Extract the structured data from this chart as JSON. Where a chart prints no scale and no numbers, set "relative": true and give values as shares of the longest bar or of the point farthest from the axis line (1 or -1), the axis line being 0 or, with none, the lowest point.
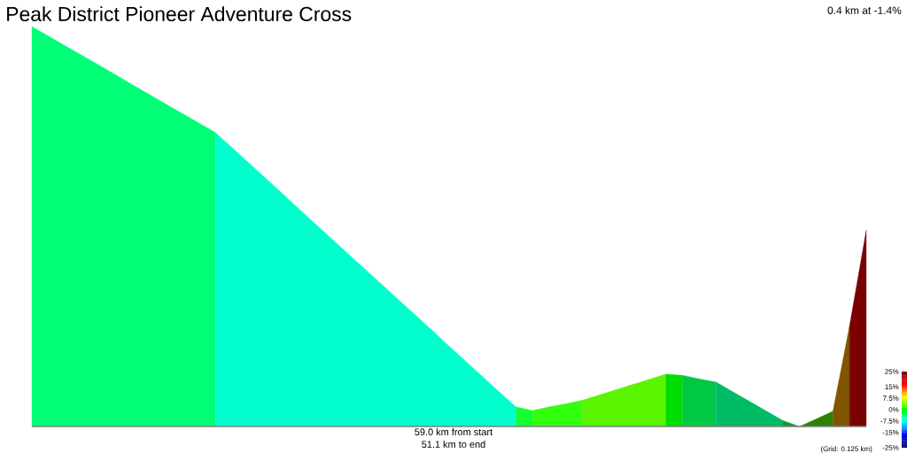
{
  "chart_data": {
    "type": "area",
    "title": "Peak District Pioneer Adventure Cross",
    "relative": true,
    "categories": [
      null,
      null,
      null,
      null,
      null,
      null,
      null,
      null,
      null,
      null,
      null,
      null,
      null,
      null,
      null,
      null,
      null,
      null,
      null,
      null,
      null,
      null,
      null,
      null,
      null,
      null,
      null,
      null,
      null,
      null,
      null,
      null,
      null,
      null,
      null,
      null,
      null,
      null,
      null,
      null,
      null,
      null,
      null,
      null,
      null,
      null,
      null,
      null,
      null,
      null,
      null
    ],
    "series": [
      {
        "color": "#00ff77",
        "values": [
          1.0,
          0.976,
          0.952,
          0.928,
          0.904,
          0.88,
          0.855,
          0.831,
          0.807,
          0.783,
          0.759,
          0.735,
          null,
          null,
          null,
          null,
          null,
          null,
          null,
          null,
          null,
          null,
          null,
          null,
          null,
          null,
          null,
          null,
          null,
          null,
          null,
          null,
          null,
          null,
          null,
          null,
          null,
          null,
          null,
          null,
          null,
          null,
          null,
          null,
          null,
          null,
          null,
          null,
          null,
          null,
          null
        ]
      },
      {
        "color": "#00ffcc",
        "values": [
          null,
          null,
          null,
          null,
          null,
          null,
          null,
          null,
          null,
          null,
          null,
          0.735,
          0.697,
          0.659,
          0.621,
          0.583,
          0.544,
          0.506,
          0.468,
          0.43,
          0.392,
          0.354,
          0.316,
          0.278,
          0.24,
          0.201,
          0.163,
          0.125,
          0.087,
          0.049,
          null,
          null,
          null,
          null,
          null,
          null,
          null,
          null,
          null,
          null,
          null,
          null,
          null,
          null,
          null,
          null,
          null,
          null,
          null,
          null,
          null
        ]
      },
      {
        "color": "#11ff33",
        "values": [
          null,
          null,
          null,
          null,
          null,
          null,
          null,
          null,
          null,
          null,
          null,
          null,
          null,
          null,
          null,
          null,
          null,
          null,
          null,
          null,
          null,
          null,
          null,
          null,
          null,
          null,
          null,
          null,
          null,
          0.049,
          0.04,
          null,
          null,
          null,
          null,
          null,
          null,
          null,
          null,
          null,
          null,
          null,
          null,
          null,
          null,
          null,
          null,
          null,
          null,
          null,
          null
        ]
      },
      {
        "color": "#33ff11",
        "values": [
          null,
          null,
          null,
          null,
          null,
          null,
          null,
          null,
          null,
          null,
          null,
          null,
          null,
          null,
          null,
          null,
          null,
          null,
          null,
          null,
          null,
          null,
          null,
          null,
          null,
          null,
          null,
          null,
          null,
          null,
          0.04,
          0.049,
          0.057,
          0.066,
          null,
          null,
          null,
          null,
          null,
          null,
          null,
          null,
          null,
          null,
          null,
          null,
          null,
          null,
          null,
          null,
          null
        ]
      },
      {
        "color": "#5af500",
        "values": [
          null,
          null,
          null,
          null,
          null,
          null,
          null,
          null,
          null,
          null,
          null,
          null,
          null,
          null,
          null,
          null,
          null,
          null,
          null,
          null,
          null,
          null,
          null,
          null,
          null,
          null,
          null,
          null,
          null,
          null,
          null,
          null,
          null,
          0.066,
          0.079,
          0.092,
          0.105,
          0.118,
          0.131,
          null,
          null,
          null,
          null,
          null,
          null,
          null,
          null,
          null,
          null,
          null,
          null
        ]
      },
      {
        "color": "#00dd00",
        "values": [
          null,
          null,
          null,
          null,
          null,
          null,
          null,
          null,
          null,
          null,
          null,
          null,
          null,
          null,
          null,
          null,
          null,
          null,
          null,
          null,
          null,
          null,
          null,
          null,
          null,
          null,
          null,
          null,
          null,
          null,
          null,
          null,
          null,
          null,
          null,
          null,
          null,
          null,
          0.131,
          0.128,
          null,
          null,
          null,
          null,
          null,
          null,
          null,
          null,
          null,
          null,
          null
        ]
      },
      {
        "color": "#00c844",
        "values": [
          null,
          null,
          null,
          null,
          null,
          null,
          null,
          null,
          null,
          null,
          null,
          null,
          null,
          null,
          null,
          null,
          null,
          null,
          null,
          null,
          null,
          null,
          null,
          null,
          null,
          null,
          null,
          null,
          null,
          null,
          null,
          null,
          null,
          null,
          null,
          null,
          null,
          null,
          null,
          0.128,
          0.119,
          0.111,
          null,
          null,
          null,
          null,
          null,
          null,
          null,
          null,
          null
        ]
      },
      {
        "color": "#00bb66",
        "values": [
          null,
          null,
          null,
          null,
          null,
          null,
          null,
          null,
          null,
          null,
          null,
          null,
          null,
          null,
          null,
          null,
          null,
          null,
          null,
          null,
          null,
          null,
          null,
          null,
          null,
          null,
          null,
          null,
          null,
          null,
          null,
          null,
          null,
          null,
          null,
          null,
          null,
          null,
          null,
          null,
          null,
          0.111,
          0.087,
          0.063,
          0.039,
          0.015,
          null,
          null,
          null,
          null,
          null
        ]
      },
      {
        "color": "#119933",
        "values": [
          null,
          null,
          null,
          null,
          null,
          null,
          null,
          null,
          null,
          null,
          null,
          null,
          null,
          null,
          null,
          null,
          null,
          null,
          null,
          null,
          null,
          null,
          null,
          null,
          null,
          null,
          null,
          null,
          null,
          null,
          null,
          null,
          null,
          null,
          null,
          null,
          null,
          null,
          null,
          null,
          null,
          null,
          null,
          null,
          null,
          0.015,
          0.0,
          null,
          null,
          null,
          null
        ]
      },
      {
        "color": "#2e8000",
        "values": [
          null,
          null,
          null,
          null,
          null,
          null,
          null,
          null,
          null,
          null,
          null,
          null,
          null,
          null,
          null,
          null,
          null,
          null,
          null,
          null,
          null,
          null,
          null,
          null,
          null,
          null,
          null,
          null,
          null,
          null,
          null,
          null,
          null,
          null,
          null,
          null,
          null,
          null,
          null,
          null,
          null,
          null,
          null,
          null,
          null,
          null,
          0.0,
          0.019,
          0.038,
          null,
          null
        ]
      },
      {
        "color": "#805500",
        "values": [
          null,
          null,
          null,
          null,
          null,
          null,
          null,
          null,
          null,
          null,
          null,
          null,
          null,
          null,
          null,
          null,
          null,
          null,
          null,
          null,
          null,
          null,
          null,
          null,
          null,
          null,
          null,
          null,
          null,
          null,
          null,
          null,
          null,
          null,
          null,
          null,
          null,
          null,
          null,
          null,
          null,
          null,
          null,
          null,
          null,
          null,
          null,
          null,
          0.038,
          0.252,
          null
        ]
      },
      {
        "color": "#7a0000",
        "values": [
          null,
          null,
          null,
          null,
          null,
          null,
          null,
          null,
          null,
          null,
          null,
          null,
          null,
          null,
          null,
          null,
          null,
          null,
          null,
          null,
          null,
          null,
          null,
          null,
          null,
          null,
          null,
          null,
          null,
          null,
          null,
          null,
          null,
          null,
          null,
          null,
          null,
          null,
          null,
          null,
          null,
          null,
          null,
          null,
          null,
          null,
          null,
          null,
          null,
          0.252,
          0.491
        ]
      }
    ],
    "clim": [
      -25,
      25
    ],
    "cticks": [
      {
        "value": 25,
        "label": "25%"
      },
      {
        "value": 15,
        "label": "15%"
      },
      {
        "value": 7.5,
        "label": "7.5%"
      },
      {
        "value": 0,
        "label": "0%"
      },
      {
        "value": -7.5,
        "label": "-7.5%"
      },
      {
        "value": -15,
        "label": "-15%"
      },
      {
        "value": -25,
        "label": "-25%"
      }
    ],
    "annotations": [
      "0.4 km at -1.4%",
      "59.0 km from start",
      "51.1 km to end",
      "(Grid: 0.125 km)"
    ]
  }
}
